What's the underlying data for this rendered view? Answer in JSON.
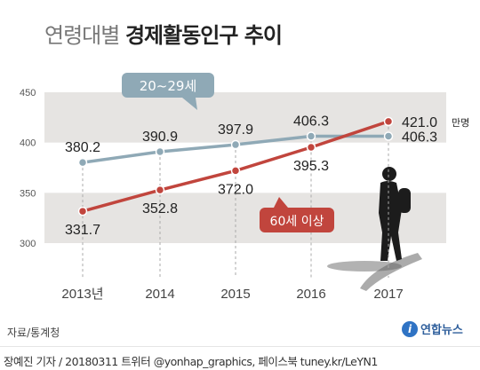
{
  "header": {
    "title_light": "연령대별",
    "title_bold": "경제활동인구 추이"
  },
  "chart_data": {
    "type": "line",
    "categories": [
      "2013년",
      "2014",
      "2015",
      "2016",
      "2017"
    ],
    "unit": "만명",
    "ylim": [
      300,
      450
    ],
    "yticks": [
      "300",
      "350",
      "400",
      "450"
    ],
    "series": [
      {
        "name": "20~29세",
        "color": "#8fa9b6",
        "values": [
          380.2,
          390.9,
          397.9,
          406.3,
          406.3
        ],
        "labels": [
          "380.2",
          "390.9",
          "397.9",
          "406.3",
          "406.3"
        ]
      },
      {
        "name": "60세 이상",
        "color": "#c1453d",
        "values": [
          331.7,
          352.8,
          372.0,
          395.3,
          421.0
        ],
        "labels": [
          "331.7",
          "352.8",
          "372.0",
          "395.3",
          "421.0"
        ]
      }
    ]
  },
  "footer": {
    "source": "자료/통계청",
    "logo_text": "연합뉴스",
    "credit": "장예진 기자 / 20180311 트위터 @yonhap_graphics, 페이스북 tuney.kr/LeYN1"
  }
}
